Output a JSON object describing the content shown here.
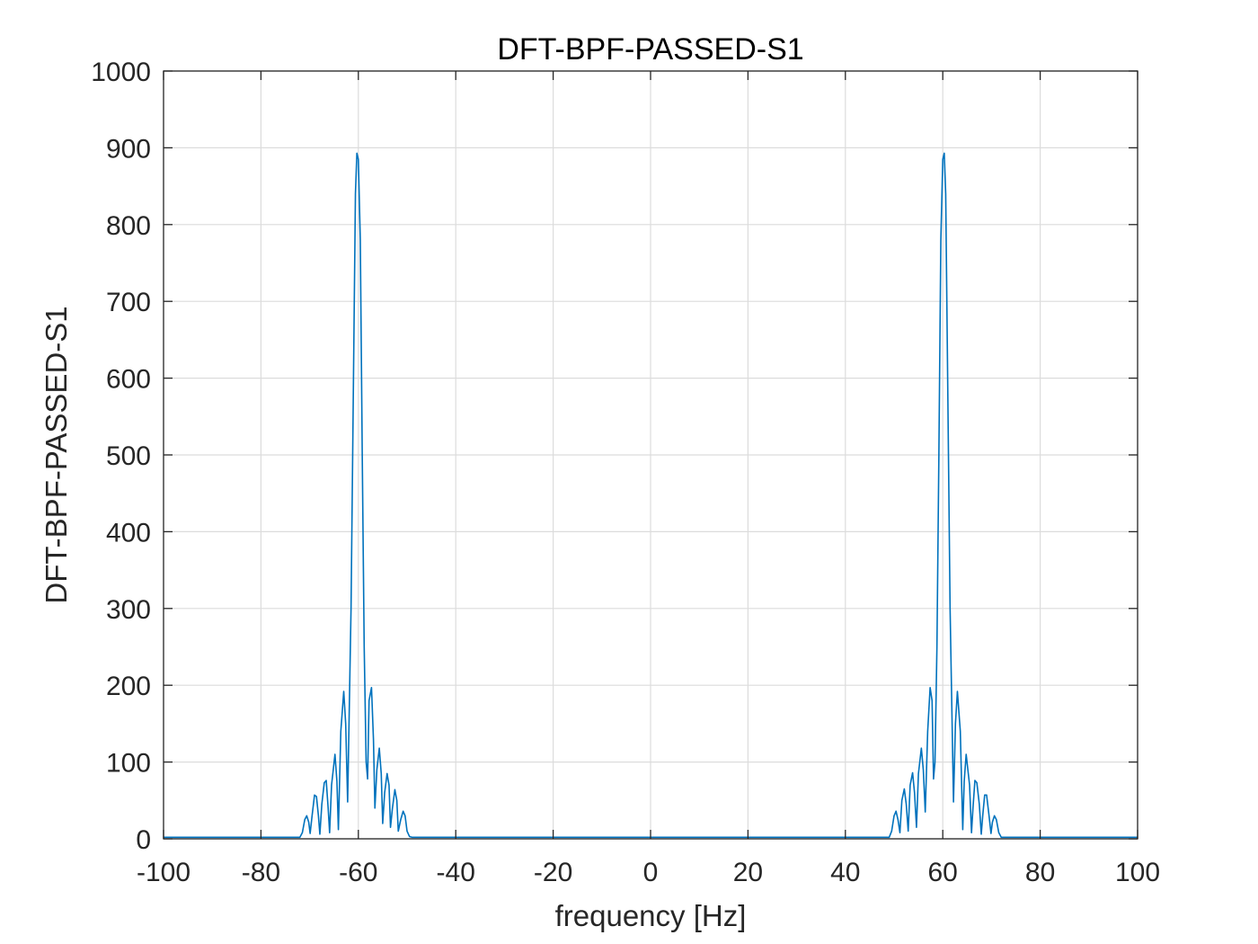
{
  "chart_data": {
    "type": "line",
    "title": "DFT-BPF-PASSED-S1",
    "xlabel": "frequency [Hz]",
    "ylabel": "DFT-BPF-PASSED-S1",
    "xlim": [
      -100,
      100
    ],
    "ylim": [
      0,
      1000
    ],
    "xticks": [
      "-100",
      "-80",
      "-60",
      "-40",
      "-20",
      "0",
      "20",
      "40",
      "60",
      "80",
      "100"
    ],
    "yticks": [
      "0",
      "100",
      "200",
      "300",
      "400",
      "500",
      "600",
      "700",
      "800",
      "900",
      "1000"
    ],
    "grid": true,
    "legend": "none",
    "series": [
      {
        "color": "#0072BD",
        "points": [
          [
            -100,
            2
          ],
          [
            -72,
            2
          ],
          [
            -71.5,
            8
          ],
          [
            -71,
            25
          ],
          [
            -70.6,
            30
          ],
          [
            -70.2,
            22
          ],
          [
            -69.9,
            7
          ],
          [
            -69.5,
            30
          ],
          [
            -69,
            57
          ],
          [
            -68.6,
            55
          ],
          [
            -68.2,
            30
          ],
          [
            -67.9,
            6
          ],
          [
            -67.5,
            45
          ],
          [
            -67,
            73
          ],
          [
            -66.6,
            76
          ],
          [
            -66.2,
            40
          ],
          [
            -65.9,
            8
          ],
          [
            -65.5,
            70
          ],
          [
            -64.8,
            110
          ],
          [
            -64.4,
            75
          ],
          [
            -64.1,
            12
          ],
          [
            -63.6,
            140
          ],
          [
            -63.0,
            192
          ],
          [
            -62.6,
            150
          ],
          [
            -62.2,
            48
          ],
          [
            -61.5,
            300
          ],
          [
            -61,
            600
          ],
          [
            -60.6,
            840
          ],
          [
            -60.3,
            893
          ],
          [
            -60.0,
            885
          ],
          [
            -59.6,
            780
          ],
          [
            -59.2,
            500
          ],
          [
            -58.8,
            250
          ],
          [
            -58.4,
            100
          ],
          [
            -58.1,
            78
          ],
          [
            -57.8,
            180
          ],
          [
            -57.3,
            197
          ],
          [
            -56.9,
            130
          ],
          [
            -56.6,
            40
          ],
          [
            -56.2,
            90
          ],
          [
            -55.7,
            118
          ],
          [
            -55.3,
            85
          ],
          [
            -55.0,
            20
          ],
          [
            -54.6,
            60
          ],
          [
            -54.1,
            85
          ],
          [
            -53.7,
            70
          ],
          [
            -53.4,
            15
          ],
          [
            -53.0,
            40
          ],
          [
            -52.5,
            64
          ],
          [
            -52.1,
            50
          ],
          [
            -51.8,
            10
          ],
          [
            -51.3,
            25
          ],
          [
            -50.8,
            36
          ],
          [
            -50.4,
            30
          ],
          [
            -50.0,
            10
          ],
          [
            -49.5,
            3
          ],
          [
            -49,
            2
          ],
          [
            49,
            2
          ],
          [
            49.5,
            10
          ],
          [
            50.0,
            30
          ],
          [
            50.4,
            36
          ],
          [
            50.8,
            25
          ],
          [
            51.2,
            8
          ],
          [
            51.6,
            50
          ],
          [
            52.1,
            65
          ],
          [
            52.5,
            45
          ],
          [
            52.9,
            10
          ],
          [
            53.3,
            70
          ],
          [
            53.8,
            86
          ],
          [
            54.2,
            60
          ],
          [
            54.6,
            15
          ],
          [
            55.0,
            85
          ],
          [
            55.6,
            118
          ],
          [
            56.0,
            90
          ],
          [
            56.4,
            35
          ],
          [
            56.9,
            140
          ],
          [
            57.4,
            197
          ],
          [
            57.8,
            180
          ],
          [
            58.1,
            78
          ],
          [
            58.4,
            100
          ],
          [
            58.8,
            250
          ],
          [
            59.2,
            500
          ],
          [
            59.6,
            780
          ],
          [
            60.0,
            885
          ],
          [
            60.3,
            893
          ],
          [
            60.6,
            840
          ],
          [
            61.0,
            600
          ],
          [
            61.5,
            300
          ],
          [
            62.2,
            48
          ],
          [
            62.6,
            150
          ],
          [
            63.0,
            192
          ],
          [
            63.6,
            140
          ],
          [
            64.1,
            12
          ],
          [
            64.4,
            75
          ],
          [
            64.8,
            110
          ],
          [
            65.5,
            70
          ],
          [
            65.9,
            8
          ],
          [
            66.2,
            40
          ],
          [
            66.6,
            76
          ],
          [
            67.0,
            73
          ],
          [
            67.5,
            45
          ],
          [
            67.9,
            6
          ],
          [
            68.2,
            30
          ],
          [
            68.6,
            57
          ],
          [
            69.0,
            57
          ],
          [
            69.5,
            30
          ],
          [
            69.9,
            7
          ],
          [
            70.2,
            22
          ],
          [
            70.6,
            30
          ],
          [
            71.0,
            25
          ],
          [
            71.5,
            8
          ],
          [
            72,
            2
          ],
          [
            100,
            2
          ]
        ]
      }
    ]
  }
}
